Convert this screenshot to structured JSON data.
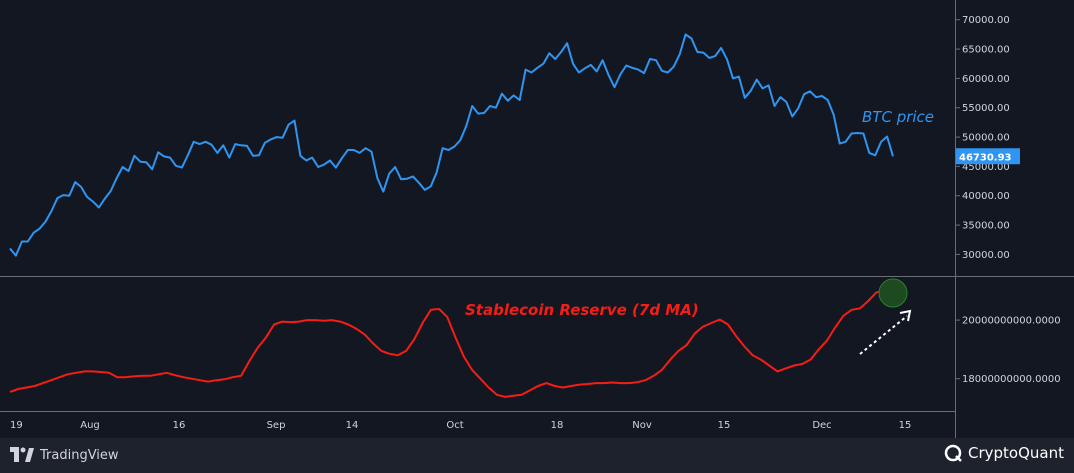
{
  "chart_data": [
    {
      "type": "line",
      "annotation": "BTC price",
      "ylim": [
        27000,
        72000
      ],
      "y_ticks": [
        "70000.00",
        "65000.00",
        "60000.00",
        "55000.00",
        "50000.00",
        "45000.00",
        "40000.00",
        "35000.00",
        "30000.00"
      ],
      "y_tick_values": [
        70000,
        65000,
        60000,
        55000,
        50000,
        45000,
        40000,
        35000,
        30000
      ],
      "last_value_label": "46730.93",
      "series": [
        {
          "color": "#2f95f0",
          "values": [
            31000,
            29800,
            32200,
            32200,
            33700,
            34400,
            35600,
            37400,
            39600,
            40100,
            40000,
            42300,
            41500,
            39800,
            39000,
            38000,
            39500,
            40800,
            43000,
            44900,
            44200,
            46800,
            45800,
            45700,
            44500,
            47400,
            46700,
            46500,
            45100,
            44800,
            46900,
            49200,
            48800,
            49200,
            48700,
            47300,
            48600,
            46500,
            48800,
            48600,
            48500,
            46800,
            46900,
            49000,
            49600,
            50000,
            49900,
            52100,
            52800,
            46800,
            46000,
            46500,
            44900,
            45300,
            46000,
            44800,
            46400,
            47800,
            47800,
            47300,
            48100,
            47500,
            43000,
            40700,
            43800,
            44900,
            42800,
            42900,
            43300,
            42200,
            41000,
            41600,
            44000,
            48100,
            47800,
            48400,
            49500,
            51900,
            55300,
            54000,
            54100,
            55300,
            55000,
            57400,
            56200,
            57100,
            56300,
            61500,
            61000,
            61800,
            62500,
            64300,
            63300,
            64500,
            66000,
            62500,
            61000,
            61700,
            62300,
            61200,
            63100,
            60600,
            58500,
            60700,
            62200,
            61800,
            61500,
            60900,
            63300,
            63100,
            61300,
            61000,
            62000,
            64100,
            67500,
            66800,
            64500,
            64400,
            63500,
            63800,
            65200,
            63200,
            60000,
            60300,
            56700,
            57900,
            59800,
            58300,
            58800,
            55300,
            56800,
            56000,
            53500,
            54900,
            57300,
            57800,
            56800,
            57000,
            56300,
            53800,
            48900,
            49200,
            50600,
            50700,
            50600,
            47300,
            46900,
            49200,
            50100,
            46730
          ]
        }
      ]
    },
    {
      "type": "line",
      "annotation": "Stablecoin Reserve (7d MA)",
      "ylim": [
        17000000000,
        21300000000
      ],
      "y_ticks": [
        "20000000000.0000",
        "18000000000.0000"
      ],
      "y_tick_values": [
        20000000000,
        18000000000
      ],
      "series": [
        {
          "color": "#f51d14",
          "values": [
            17550000000,
            17650000000,
            17700000000,
            17750000000,
            17850000000,
            17950000000,
            18050000000,
            18150000000,
            18200000000,
            18250000000,
            18250000000,
            18230000000,
            18200000000,
            18050000000,
            18050000000,
            18080000000,
            18100000000,
            18100000000,
            18150000000,
            18200000000,
            18120000000,
            18050000000,
            18000000000,
            17950000000,
            17900000000,
            17950000000,
            17980000000,
            18050000000,
            18100000000,
            18600000000,
            19050000000,
            19400000000,
            19850000000,
            19950000000,
            19930000000,
            19950000000,
            20000000000,
            20000000000,
            19980000000,
            20000000000,
            19950000000,
            19850000000,
            19700000000,
            19500000000,
            19200000000,
            18950000000,
            18850000000,
            18800000000,
            18950000000,
            19350000000,
            19900000000,
            20350000000,
            20380000000,
            20100000000,
            19400000000,
            18750000000,
            18300000000,
            18000000000,
            17700000000,
            17450000000,
            17380000000,
            17420000000,
            17450000000,
            17600000000,
            17750000000,
            17850000000,
            17750000000,
            17700000000,
            17750000000,
            17800000000,
            17820000000,
            17850000000,
            17850000000,
            17870000000,
            17850000000,
            17850000000,
            17880000000,
            17950000000,
            18100000000,
            18300000000,
            18650000000,
            18950000000,
            19150000000,
            19550000000,
            19780000000,
            19900000000,
            20020000000,
            19850000000,
            19450000000,
            19100000000,
            18800000000,
            18650000000,
            18450000000,
            18250000000,
            18350000000,
            18450000000,
            18500000000,
            18650000000,
            19000000000,
            19300000000,
            19750000000,
            20150000000,
            20350000000,
            20400000000,
            20650000000,
            20950000000,
            21000000000,
            21150000000
          ]
        }
      ]
    }
  ],
  "x_axis": {
    "labels": [
      "19",
      "Aug",
      "16",
      "Sep",
      "14",
      "Oct",
      "18",
      "Nov",
      "15",
      "Dec",
      "15"
    ]
  },
  "branding": {
    "left": "TradingView",
    "right": "CryptoQuant"
  }
}
